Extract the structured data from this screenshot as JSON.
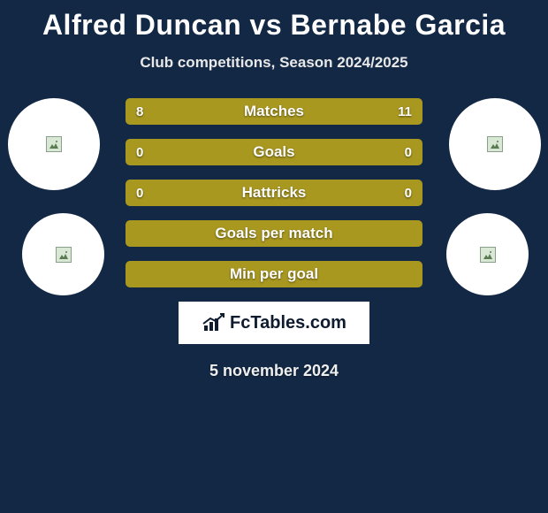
{
  "title": "Alfred Duncan vs Bernabe Garcia",
  "subtitle": "Club competitions, Season 2024/2025",
  "date": "5 november 2024",
  "colors": {
    "background": "#132844",
    "left": "#a99820",
    "right": "#a99820",
    "full": "#a99820"
  },
  "rows": [
    {
      "label": "Matches",
      "left": "8",
      "right": "11",
      "leftPct": 42.1,
      "rightPct": 57.9,
      "showValues": true
    },
    {
      "label": "Goals",
      "left": "0",
      "right": "0",
      "leftPct": 50.0,
      "rightPct": 50.0,
      "showValues": true
    },
    {
      "label": "Hattricks",
      "left": "0",
      "right": "0",
      "leftPct": 50.0,
      "rightPct": 50.0,
      "showValues": true
    },
    {
      "label": "Goals per match",
      "left": "",
      "right": "",
      "leftPct": 100,
      "rightPct": 0,
      "showValues": false
    },
    {
      "label": "Min per goal",
      "left": "",
      "right": "",
      "leftPct": 100,
      "rightPct": 0,
      "showValues": false
    }
  ],
  "attribution": "FcTables.com"
}
